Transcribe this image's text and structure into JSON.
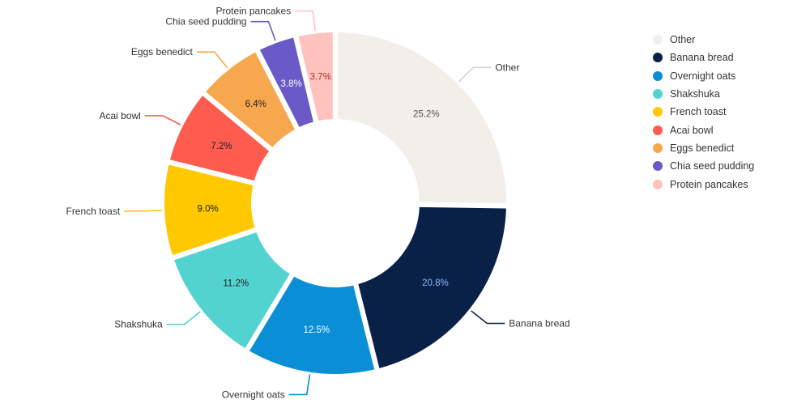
{
  "chart_data": {
    "type": "pie",
    "variant": "donut",
    "title": "",
    "legend_position": "right",
    "slices": [
      {
        "name": "Other",
        "value": 25.2,
        "label": "25.2%",
        "color": "#f2efea",
        "label_color": "#555555"
      },
      {
        "name": "Banana bread",
        "value": 20.8,
        "label": "20.8%",
        "color": "#0a2147",
        "label_color": "#8fb4ff"
      },
      {
        "name": "Overnight oats",
        "value": 12.5,
        "label": "12.5%",
        "color": "#0a8fd6",
        "label_color": "#ffffff"
      },
      {
        "name": "Shakshuka",
        "value": 11.2,
        "label": "11.2%",
        "color": "#52d3d0",
        "label_color": "#222222"
      },
      {
        "name": "French toast",
        "value": 9.0,
        "label": "9.0%",
        "color": "#ffc800",
        "label_color": "#222222"
      },
      {
        "name": "Acai bowl",
        "value": 7.2,
        "label": "7.2%",
        "color": "#ff5c50",
        "label_color": "#222222"
      },
      {
        "name": "Eggs benedict",
        "value": 6.4,
        "label": "6.4%",
        "color": "#f7a84e",
        "label_color": "#222222"
      },
      {
        "name": "Chia seed pudding",
        "value": 3.8,
        "label": "3.8%",
        "color": "#6a5ac8",
        "label_color": "#ffffff"
      },
      {
        "name": "Protein pancakes",
        "value": 3.7,
        "label": "3.7%",
        "color": "#ffc2bd",
        "label_color": "#b03030"
      }
    ]
  }
}
